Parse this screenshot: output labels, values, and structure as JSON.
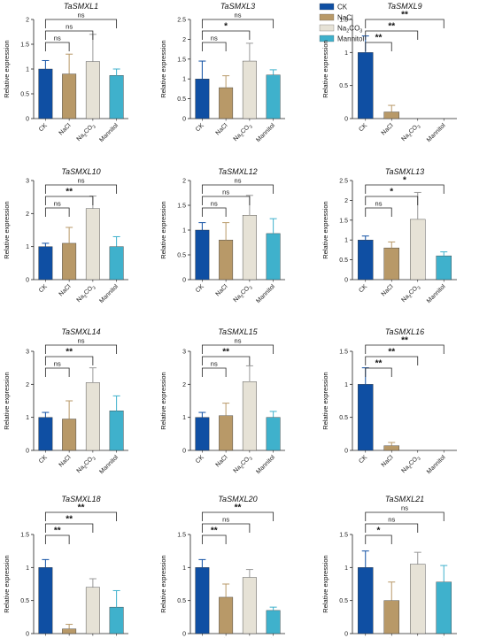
{
  "legend": {
    "placement": "top-right",
    "items": [
      {
        "label": "CK",
        "color": "#0f4fa3"
      },
      {
        "label": "NaCl",
        "color": "#b89968"
      },
      {
        "label": "Na2CO3",
        "color": "#e6e2d6"
      },
      {
        "label": "Mannitol",
        "color": "#3fb1cc"
      }
    ]
  },
  "colors": {
    "CK": "#0f4fa3",
    "NaCl": "#b89968",
    "Na2CO3": "#e6e2d6",
    "Mannitol": "#3fb1cc",
    "axis": "#222222"
  },
  "chart_data": [
    {
      "type": "bar",
      "title": "TaSMXL1",
      "ylabel": "Relative expression",
      "categories": [
        "CK",
        "NaCl",
        "Na2CO3",
        "Mannitol"
      ],
      "values": [
        1.0,
        0.9,
        1.15,
        0.87
      ],
      "errors": [
        0.17,
        0.4,
        0.55,
        0.13
      ],
      "ylim": [
        0,
        2.0
      ],
      "yticks": [
        0,
        0.5,
        1.0,
        1.5,
        2.0
      ],
      "significance": [
        {
          "target": "NaCl",
          "label": "ns"
        },
        {
          "target": "Na2CO3",
          "label": "ns"
        },
        {
          "target": "Mannitol",
          "label": "ns"
        }
      ]
    },
    {
      "type": "bar",
      "title": "TaSMXL3",
      "ylabel": "Relative expression",
      "categories": [
        "CK",
        "NaCl",
        "Na2CO3",
        "Mannitol"
      ],
      "values": [
        1.0,
        0.78,
        1.45,
        1.1
      ],
      "errors": [
        0.45,
        0.3,
        0.45,
        0.13
      ],
      "ylim": [
        0,
        2.5
      ],
      "yticks": [
        0,
        0.5,
        1.0,
        1.5,
        2.0,
        2.5
      ],
      "significance": [
        {
          "target": "NaCl",
          "label": "ns"
        },
        {
          "target": "Na2CO3",
          "label": "*"
        },
        {
          "target": "Mannitol",
          "label": "ns"
        }
      ]
    },
    {
      "type": "bar",
      "title": "TaSMXL9",
      "ylabel": "Relative expression",
      "categories": [
        "CK",
        "NaCl",
        "Na2CO3",
        "Mannitol"
      ],
      "values": [
        1.0,
        0.1,
        0.0,
        0.0
      ],
      "errors": [
        0.25,
        0.1,
        0.0,
        0.0
      ],
      "ylim": [
        0,
        1.5
      ],
      "yticks": [
        0,
        0.5,
        1.0,
        1.5
      ],
      "significance": [
        {
          "target": "NaCl",
          "label": "**"
        },
        {
          "target": "Na2CO3",
          "label": "**"
        },
        {
          "target": "Mannitol",
          "label": "**"
        }
      ]
    },
    {
      "type": "bar",
      "title": "TaSMXL10",
      "ylabel": "Relative expression",
      "categories": [
        "CK",
        "NaCl",
        "Na2CO3",
        "Mannitol"
      ],
      "values": [
        1.0,
        1.1,
        2.15,
        1.0
      ],
      "errors": [
        0.1,
        0.48,
        0.38,
        0.3
      ],
      "ylim": [
        0,
        3
      ],
      "yticks": [
        0,
        1,
        2,
        3
      ],
      "significance": [
        {
          "target": "NaCl",
          "label": "ns"
        },
        {
          "target": "Na2CO3",
          "label": "**"
        },
        {
          "target": "Mannitol",
          "label": "ns"
        }
      ]
    },
    {
      "type": "bar",
      "title": "TaSMXL12",
      "ylabel": "Relative expression",
      "categories": [
        "CK",
        "NaCl",
        "Na2CO3",
        "Mannitol"
      ],
      "values": [
        1.0,
        0.8,
        1.3,
        0.93
      ],
      "errors": [
        0.15,
        0.35,
        0.4,
        0.3
      ],
      "ylim": [
        0,
        2.0
      ],
      "yticks": [
        0,
        0.5,
        1.0,
        1.5,
        2.0
      ],
      "significance": [
        {
          "target": "NaCl",
          "label": "ns"
        },
        {
          "target": "Na2CO3",
          "label": "ns"
        },
        {
          "target": "Mannitol",
          "label": "ns"
        }
      ]
    },
    {
      "type": "bar",
      "title": "TaSMXL13",
      "ylabel": "Relative expression",
      "categories": [
        "CK",
        "NaCl",
        "Na2CO3",
        "Mannitol"
      ],
      "values": [
        1.0,
        0.8,
        1.52,
        0.6
      ],
      "errors": [
        0.1,
        0.15,
        0.68,
        0.1
      ],
      "ylim": [
        0,
        2.5
      ],
      "yticks": [
        0,
        0.5,
        1.0,
        1.5,
        2.0,
        2.5
      ],
      "significance": [
        {
          "target": "NaCl",
          "label": "ns"
        },
        {
          "target": "Na2CO3",
          "label": "*"
        },
        {
          "target": "Mannitol",
          "label": "*"
        }
      ]
    },
    {
      "type": "bar",
      "title": "TaSMXL14",
      "ylabel": "Relative expression",
      "categories": [
        "CK",
        "NaCl",
        "Na2CO3",
        "Mannitol"
      ],
      "values": [
        1.0,
        0.95,
        2.05,
        1.2
      ],
      "errors": [
        0.15,
        0.55,
        0.45,
        0.45
      ],
      "ylim": [
        0,
        3
      ],
      "yticks": [
        0,
        1,
        2,
        3
      ],
      "significance": [
        {
          "target": "NaCl",
          "label": "ns"
        },
        {
          "target": "Na2CO3",
          "label": "**"
        },
        {
          "target": "Mannitol",
          "label": "ns"
        }
      ]
    },
    {
      "type": "bar",
      "title": "TaSMXL15",
      "ylabel": "Relative expression",
      "categories": [
        "CK",
        "NaCl",
        "Na2CO3",
        "Mannitol"
      ],
      "values": [
        1.0,
        1.05,
        2.08,
        1.0
      ],
      "errors": [
        0.15,
        0.38,
        0.48,
        0.18
      ],
      "ylim": [
        0,
        3
      ],
      "yticks": [
        0,
        1,
        2,
        3
      ],
      "significance": [
        {
          "target": "NaCl",
          "label": "ns"
        },
        {
          "target": "Na2CO3",
          "label": "**"
        },
        {
          "target": "Mannitol",
          "label": "ns"
        }
      ]
    },
    {
      "type": "bar",
      "title": "TaSMXL16",
      "ylabel": "Relative expression",
      "categories": [
        "CK",
        "NaCl",
        "Na2CO3",
        "Mannitol"
      ],
      "values": [
        1.0,
        0.07,
        0.0,
        0.0
      ],
      "errors": [
        0.25,
        0.05,
        0.0,
        0.0
      ],
      "ylim": [
        0,
        1.5
      ],
      "yticks": [
        0,
        0.5,
        1.0,
        1.5
      ],
      "significance": [
        {
          "target": "NaCl",
          "label": "**"
        },
        {
          "target": "Na2CO3",
          "label": "**"
        },
        {
          "target": "Mannitol",
          "label": "**"
        }
      ]
    },
    {
      "type": "bar",
      "title": "TaSMXL18",
      "ylabel": "Relative expression",
      "categories": [
        "CK",
        "NaCl",
        "Na2CO3",
        "Mannitol"
      ],
      "values": [
        1.0,
        0.07,
        0.7,
        0.4
      ],
      "errors": [
        0.12,
        0.07,
        0.13,
        0.25
      ],
      "ylim": [
        0,
        1.5
      ],
      "yticks": [
        0,
        0.5,
        1.0,
        1.5
      ],
      "significance": [
        {
          "target": "NaCl",
          "label": "**"
        },
        {
          "target": "Na2CO3",
          "label": "**"
        },
        {
          "target": "Mannitol",
          "label": "**"
        }
      ]
    },
    {
      "type": "bar",
      "title": "TaSMXL20",
      "ylabel": "Relative expression",
      "categories": [
        "CK",
        "NaCl",
        "Na2CO3",
        "Mannitol"
      ],
      "values": [
        1.0,
        0.55,
        0.85,
        0.35
      ],
      "errors": [
        0.12,
        0.2,
        0.12,
        0.05
      ],
      "ylim": [
        0,
        1.5
      ],
      "yticks": [
        0,
        0.5,
        1.0,
        1.5
      ],
      "significance": [
        {
          "target": "NaCl",
          "label": "**"
        },
        {
          "target": "Na2CO3",
          "label": "ns"
        },
        {
          "target": "Mannitol",
          "label": "**"
        }
      ]
    },
    {
      "type": "bar",
      "title": "TaSMXL21",
      "ylabel": "Relative expression",
      "categories": [
        "CK",
        "NaCl",
        "Na2CO3",
        "Mannitol"
      ],
      "values": [
        1.0,
        0.5,
        1.05,
        0.78
      ],
      "errors": [
        0.25,
        0.28,
        0.18,
        0.25
      ],
      "ylim": [
        0,
        1.5
      ],
      "yticks": [
        0,
        0.5,
        1.0,
        1.5
      ],
      "significance": [
        {
          "target": "NaCl",
          "label": "*"
        },
        {
          "target": "Na2CO3",
          "label": "ns"
        },
        {
          "target": "Mannitol",
          "label": "ns"
        }
      ]
    }
  ]
}
